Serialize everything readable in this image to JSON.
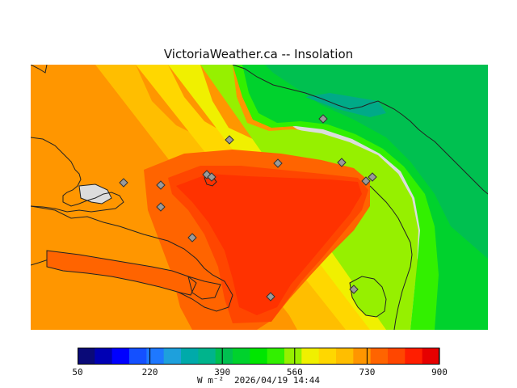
{
  "title": "VictoriaWeather.ca -- Insolation",
  "colorbar": {
    "ticks": [
      "50",
      "220",
      "390",
      "560",
      "730",
      "900"
    ],
    "units": "W m⁻²",
    "timestamp": "2026/04/19 14:44",
    "colors": [
      "#0a0a78",
      "#0000b4",
      "#0000ff",
      "#1450ff",
      "#1e78ff",
      "#1ea0dc",
      "#00aaaa",
      "#00b48c",
      "#00c050",
      "#00d22d",
      "#00e600",
      "#32f000",
      "#96f000",
      "#f0f000",
      "#ffd700",
      "#ffbe00",
      "#ff9600",
      "#ff6400",
      "#ff4600",
      "#ff1e00",
      "#e60000"
    ]
  },
  "map": {
    "background_color": "#dcdcdc",
    "land_outline_color": "#222222",
    "station_marker": "diamond-icon",
    "station_count": 14
  }
}
